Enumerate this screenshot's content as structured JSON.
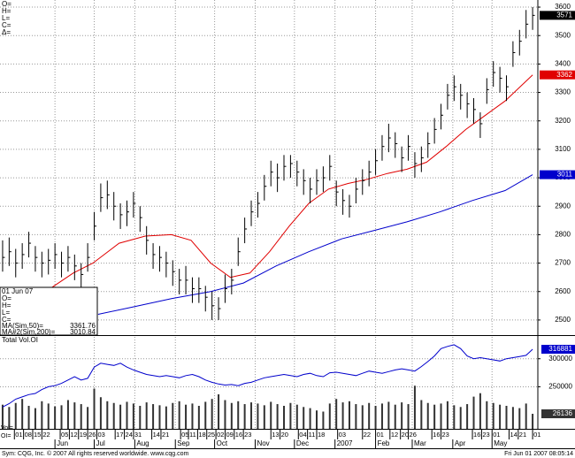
{
  "chart_data": [
    {
      "type": "ohlc",
      "ohlc_labels": [
        "O=",
        "H=",
        "L=",
        "C=",
        "Δ="
      ],
      "xlim": [
        -11,
        400
      ],
      "ylim": [
        2450,
        3625
      ],
      "yticks": [
        2500,
        2600,
        2700,
        2800,
        2900,
        3000,
        3100,
        3200,
        3300,
        3400,
        3500,
        3600
      ],
      "grid": true,
      "bar_color": "#000000",
      "close_label_color": "#000000",
      "x": [
        -9,
        -4,
        1,
        6,
        11,
        16,
        21,
        26,
        31,
        36,
        41,
        46,
        51,
        56,
        61,
        66,
        71,
        76,
        81,
        86,
        91,
        96,
        101,
        106,
        111,
        116,
        121,
        126,
        131,
        136,
        141,
        146,
        151,
        156,
        161,
        166,
        171,
        176,
        181,
        186,
        191,
        196,
        201,
        206,
        211,
        216,
        221,
        226,
        231,
        236,
        241,
        246,
        251,
        256,
        261,
        266,
        271,
        276,
        281,
        286,
        291,
        296,
        301,
        306,
        311,
        316,
        321,
        326,
        331,
        336,
        341,
        346,
        351,
        356,
        361,
        366,
        371,
        376,
        381,
        386,
        391,
        396
      ],
      "high": [
        2780,
        2790,
        2750,
        2770,
        2810,
        2760,
        2740,
        2750,
        2770,
        2740,
        2760,
        2730,
        2700,
        2770,
        2880,
        2980,
        2990,
        2950,
        2910,
        2920,
        2950,
        2900,
        2830,
        2770,
        2760,
        2740,
        2710,
        2680,
        2690,
        2650,
        2650,
        2620,
        2600,
        2580,
        2660,
        2680,
        2790,
        2860,
        2920,
        2950,
        3010,
        3060,
        3050,
        3080,
        3080,
        3060,
        3030,
        3000,
        3030,
        3040,
        3080,
        2990,
        2960,
        2940,
        3000,
        3030,
        3060,
        3100,
        3150,
        3190,
        3160,
        3110,
        3150,
        3090,
        3110,
        3160,
        3210,
        3260,
        3330,
        3360,
        3330,
        3300,
        3280,
        3230,
        3350,
        3410,
        3390,
        3360,
        3480,
        3520,
        3590,
        3600
      ],
      "low": [
        2670,
        2690,
        2650,
        2680,
        2720,
        2670,
        2650,
        2660,
        2680,
        2650,
        2670,
        2640,
        2610,
        2670,
        2780,
        2880,
        2890,
        2850,
        2820,
        2830,
        2860,
        2810,
        2730,
        2680,
        2670,
        2650,
        2620,
        2590,
        2590,
        2560,
        2560,
        2530,
        2500,
        2500,
        2560,
        2590,
        2690,
        2770,
        2830,
        2860,
        2920,
        2970,
        2950,
        2990,
        3000,
        2970,
        2940,
        2910,
        2940,
        2950,
        2990,
        2900,
        2870,
        2860,
        2910,
        2940,
        2970,
        3010,
        3060,
        3090,
        3070,
        3020,
        3060,
        3000,
        3020,
        3070,
        3120,
        3170,
        3240,
        3270,
        3240,
        3210,
        3190,
        3140,
        3260,
        3320,
        3300,
        3270,
        3390,
        3430,
        3490,
        3520
      ],
      "close": [
        2720,
        2740,
        2700,
        2730,
        2770,
        2720,
        2700,
        2710,
        2730,
        2700,
        2720,
        2690,
        2660,
        2720,
        2830,
        2930,
        2940,
        2900,
        2870,
        2880,
        2910,
        2860,
        2780,
        2730,
        2720,
        2700,
        2670,
        2640,
        2640,
        2610,
        2610,
        2580,
        2550,
        2540,
        2610,
        2640,
        2740,
        2820,
        2880,
        2910,
        2970,
        3020,
        3000,
        3040,
        3050,
        3020,
        2990,
        2960,
        2990,
        3000,
        3040,
        2950,
        2920,
        2900,
        2960,
        2990,
        3020,
        3060,
        3110,
        3140,
        3120,
        3070,
        3110,
        3050,
        3070,
        3120,
        3170,
        3220,
        3290,
        3320,
        3290,
        3260,
        3240,
        3190,
        3310,
        3370,
        3350,
        3320,
        3440,
        3480,
        3540,
        3571
      ],
      "series": [
        {
          "name": "MA(Sim,50)=",
          "color": "#e00000",
          "x": [
            24,
            45,
            60,
            80,
            100,
            120,
            135,
            150,
            165,
            180,
            195,
            210,
            225,
            240,
            255,
            270,
            285,
            300,
            315,
            330,
            345,
            360,
            375,
            396
          ],
          "values": [
            2600,
            2665,
            2700,
            2770,
            2795,
            2800,
            2780,
            2700,
            2650,
            2665,
            2740,
            2830,
            2910,
            2960,
            2980,
            2995,
            3015,
            3030,
            3055,
            3110,
            3170,
            3220,
            3270,
            3361.76
          ],
          "value_labels": [
            null,
            null,
            null,
            null,
            null,
            null,
            null,
            null,
            null,
            null,
            null,
            null,
            null,
            null,
            null,
            null,
            null,
            null,
            null,
            null,
            null,
            null,
            null,
            "3362"
          ]
        },
        {
          "name": "MA#2(Sim,200)=",
          "color": "#0000cc",
          "x": [
            64,
            90,
            120,
            150,
            175,
            200,
            225,
            250,
            275,
            300,
            325,
            350,
            375,
            396
          ],
          "values": [
            2520,
            2545,
            2575,
            2600,
            2630,
            2690,
            2740,
            2785,
            2815,
            2845,
            2880,
            2920,
            2955,
            3010.84
          ],
          "value_labels": [
            null,
            null,
            null,
            null,
            null,
            null,
            null,
            null,
            null,
            null,
            null,
            null,
            null,
            "3011"
          ]
        }
      ],
      "info_box": {
        "date": "01 Jun 07",
        "labels": [
          "O=",
          "H=",
          "L=",
          "C="
        ]
      }
    },
    {
      "type": "volume",
      "title": "Total Vol.OI",
      "xlim": [
        -11,
        400
      ],
      "ylim": [
        175000,
        339000
      ],
      "yticks": [
        250000,
        300000
      ],
      "y2lim": [
        0,
        160000
      ],
      "grid": true,
      "x": [
        -9,
        -4,
        1,
        6,
        11,
        16,
        21,
        26,
        31,
        36,
        41,
        46,
        51,
        56,
        61,
        66,
        71,
        76,
        81,
        86,
        91,
        96,
        101,
        106,
        111,
        116,
        121,
        126,
        131,
        136,
        141,
        146,
        151,
        156,
        161,
        166,
        171,
        176,
        181,
        186,
        191,
        196,
        201,
        206,
        211,
        216,
        221,
        226,
        231,
        236,
        241,
        246,
        251,
        256,
        261,
        266,
        271,
        276,
        281,
        286,
        291,
        296,
        301,
        306,
        311,
        316,
        321,
        326,
        331,
        336,
        341,
        346,
        351,
        356,
        361,
        366,
        371,
        376,
        381,
        386,
        391,
        396
      ],
      "series": [
        {
          "name": "Vol=",
          "color": "#333333",
          "axis": "y2",
          "values": [
            42000,
            38000,
            45000,
            52000,
            40000,
            36000,
            48000,
            44000,
            39000,
            41000,
            50000,
            46000,
            43000,
            38000,
            70000,
            55000,
            48000,
            45000,
            42000,
            47000,
            44000,
            40000,
            46000,
            43000,
            41000,
            39000,
            45000,
            48000,
            42000,
            44000,
            40000,
            47000,
            52000,
            60000,
            50000,
            45000,
            48000,
            43000,
            46000,
            44000,
            41000,
            47000,
            43000,
            40000,
            45000,
            42000,
            38000,
            36000,
            32000,
            30000,
            44000,
            52000,
            46000,
            48000,
            43000,
            41000,
            45000,
            40000,
            44000,
            47000,
            42000,
            46000,
            43000,
            75000,
            50000,
            45000,
            42000,
            44000,
            48000,
            41000,
            38000,
            43000,
            56000,
            62000,
            48000,
            45000,
            42000,
            40000,
            38000,
            36000,
            44000,
            26136
          ]
        },
        {
          "name": "OI=",
          "color": "#0000cc",
          "values": [
            214000,
            220000,
            228000,
            232000,
            236000,
            238000,
            245000,
            250000,
            252000,
            256000,
            262000,
            268000,
            262000,
            265000,
            285000,
            292000,
            290000,
            288000,
            292000,
            285000,
            280000,
            276000,
            272000,
            270000,
            268000,
            270000,
            268000,
            266000,
            270000,
            272000,
            268000,
            262000,
            258000,
            255000,
            253000,
            254000,
            252000,
            256000,
            258000,
            262000,
            266000,
            268000,
            270000,
            272000,
            270000,
            268000,
            272000,
            274000,
            270000,
            268000,
            275000,
            276000,
            274000,
            272000,
            270000,
            274000,
            278000,
            276000,
            274000,
            277000,
            280000,
            282000,
            280000,
            278000,
            286000,
            295000,
            305000,
            318000,
            322000,
            325000,
            318000,
            305000,
            300000,
            302000,
            300000,
            298000,
            296000,
            300000,
            302000,
            304000,
            306000,
            316881
          ]
        }
      ],
      "xticks": [
        {
          "value": 0,
          "label": "01"
        },
        {
          "value": 7,
          "label": "08"
        },
        {
          "value": 14,
          "label": "15"
        },
        {
          "value": 21,
          "label": "22"
        },
        {
          "value": 35,
          "label": "05"
        },
        {
          "value": 42,
          "label": "12"
        },
        {
          "value": 49,
          "label": "19"
        },
        {
          "value": 56,
          "label": "26"
        },
        {
          "value": 63,
          "label": "03"
        },
        {
          "value": 77,
          "label": "17"
        },
        {
          "value": 84,
          "label": "24"
        },
        {
          "value": 91,
          "label": "31"
        },
        {
          "value": 105,
          "label": "14"
        },
        {
          "value": 112,
          "label": "21"
        },
        {
          "value": 127,
          "label": "05"
        },
        {
          "value": 133,
          "label": "11"
        },
        {
          "value": 140,
          "label": "18"
        },
        {
          "value": 147,
          "label": "25"
        },
        {
          "value": 154,
          "label": "02"
        },
        {
          "value": 161,
          "label": "09"
        },
        {
          "value": 168,
          "label": "16"
        },
        {
          "value": 175,
          "label": "23"
        },
        {
          "value": 196,
          "label": "13"
        },
        {
          "value": 203,
          "label": "20"
        },
        {
          "value": 217,
          "label": "04"
        },
        {
          "value": 224,
          "label": "11"
        },
        {
          "value": 231,
          "label": "18"
        },
        {
          "value": 247,
          "label": "03"
        },
        {
          "value": 266,
          "label": "22"
        },
        {
          "value": 276,
          "label": "01"
        },
        {
          "value": 287,
          "label": "12"
        },
        {
          "value": 295,
          "label": "20"
        },
        {
          "value": 301,
          "label": "26"
        },
        {
          "value": 319,
          "label": "16"
        },
        {
          "value": 326,
          "label": "23"
        },
        {
          "value": 350,
          "label": "16"
        },
        {
          "value": 357,
          "label": "23"
        },
        {
          "value": 365,
          "label": "01"
        },
        {
          "value": 378,
          "label": "14"
        },
        {
          "value": 385,
          "label": "21"
        },
        {
          "value": 396,
          "label": "01"
        }
      ],
      "month_ticks": [
        {
          "value": 31,
          "label": "Jun"
        },
        {
          "value": 61,
          "label": "Jul"
        },
        {
          "value": 92,
          "label": "Aug"
        },
        {
          "value": 123,
          "label": "Sep"
        },
        {
          "value": 153,
          "label": "Oct"
        },
        {
          "value": 184,
          "label": "Nov"
        },
        {
          "value": 214,
          "label": "Dec"
        },
        {
          "value": 245,
          "label": "2007"
        },
        {
          "value": 276,
          "label": "Feb"
        },
        {
          "value": 304,
          "label": "Mar"
        },
        {
          "value": 335,
          "label": "Apr"
        },
        {
          "value": 365,
          "label": "May"
        }
      ]
    }
  ],
  "footer": {
    "left": "Sym: CQG, Inc. © 2007 All rights reserved worldwide. www.cqg.com",
    "right": "Fri Jun 01 2007 08:05:14"
  }
}
